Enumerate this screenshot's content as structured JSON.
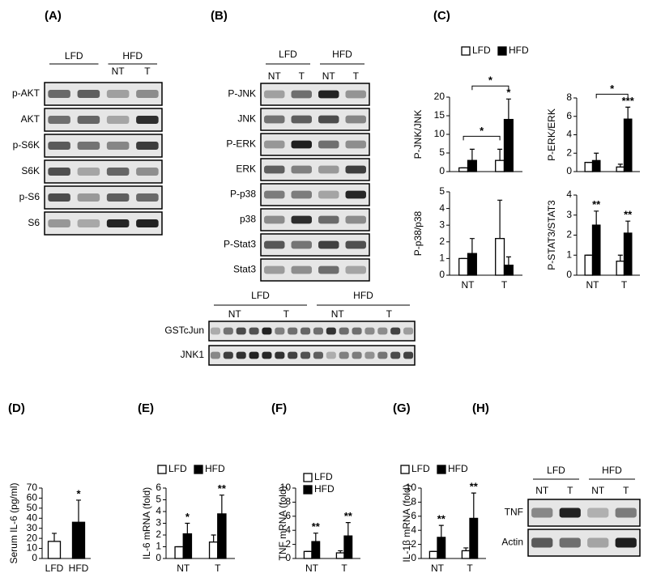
{
  "panel_labels": [
    "(A)",
    "(B)",
    "(C)",
    "(D)",
    "(E)",
    "(F)",
    "(G)",
    "(H)"
  ],
  "blots": [
    {
      "groups": [
        {
          "name": "LFD",
          "lanes": []
        },
        {
          "name": "HFD",
          "lanes": [
            "NT",
            "T"
          ]
        }
      ],
      "rows": [
        "p-AKT",
        "AKT",
        "p-S6K",
        "S6K",
        "p-S6",
        "S6"
      ]
    },
    {
      "groups": [
        {
          "name": "LFD",
          "lanes": [
            "NT",
            "T"
          ]
        },
        {
          "name": "HFD",
          "lanes": [
            "NT",
            "T"
          ]
        }
      ],
      "rows": [
        "P-JNK",
        "JNK",
        "P-ERK",
        "ERK",
        "P-p38",
        "p38",
        "P-Stat3",
        "Stat3"
      ]
    },
    {
      "groups": [
        {
          "name": "LFD",
          "lanes": [
            "NT",
            "T"
          ]
        },
        {
          "name": "HFD",
          "lanes": [
            "NT",
            "T"
          ]
        }
      ],
      "rows": [
        "GSTcJun",
        "JNK1"
      ]
    },
    {
      "groups": [
        {
          "name": "LFD",
          "lanes": [
            "NT",
            "T"
          ]
        },
        {
          "name": "HFD",
          "lanes": [
            "NT",
            "T"
          ]
        }
      ],
      "rows": [
        "TNF",
        "Actin"
      ]
    }
  ],
  "chart_data": [
    {
      "type": "bar",
      "ylabel": "P-JNK/JNK",
      "ylim": [
        0,
        20
      ],
      "yticks": [
        0,
        5,
        10,
        15,
        20
      ],
      "legend": "row",
      "series": [
        {
          "name": "LFD",
          "color": "#ffffff",
          "values": [
            1,
            3
          ],
          "errors": [
            0,
            3
          ],
          "stars": [
            null,
            null
          ],
          "bracket": "*"
        },
        {
          "name": "HFD",
          "color": "#000000",
          "values": [
            3,
            14
          ],
          "errors": [
            3,
            5.5
          ],
          "stars": [
            null,
            "*"
          ],
          "bracket": "*"
        }
      ]
    },
    {
      "type": "bar",
      "ylabel": "P-ERK/ERK",
      "ylim": [
        0,
        8
      ],
      "yticks": [
        0,
        2,
        4,
        6,
        8
      ],
      "series": [
        {
          "color": "#ffffff",
          "values": [
            1,
            0.5
          ],
          "errors": [
            0,
            0.3
          ],
          "stars": [
            null,
            null
          ]
        },
        {
          "color": "#000000",
          "values": [
            1.2,
            5.7
          ],
          "errors": [
            0.8,
            1.3
          ],
          "stars": [
            null,
            "***"
          ],
          "bracket": "*"
        }
      ]
    },
    {
      "type": "bar",
      "ylabel": "P-p38/p38",
      "ylim": [
        0,
        5
      ],
      "yticks": [
        0,
        1,
        2,
        3,
        4,
        5
      ],
      "categories": [
        "NT",
        "T"
      ],
      "series": [
        {
          "color": "#ffffff",
          "values": [
            1,
            2.2
          ],
          "errors": [
            0,
            2.3
          ],
          "stars": [
            null,
            null
          ]
        },
        {
          "color": "#000000",
          "values": [
            1.3,
            0.6
          ],
          "errors": [
            0.9,
            0.5
          ],
          "stars": [
            null,
            null
          ]
        }
      ]
    },
    {
      "type": "bar",
      "ylabel": "P-STAT3/STAT3",
      "ylim": [
        0,
        4
      ],
      "yticks": [
        0,
        1,
        2,
        3,
        4
      ],
      "categories": [
        "NT",
        "T"
      ],
      "series": [
        {
          "color": "#ffffff",
          "values": [
            1,
            0.7
          ],
          "errors": [
            0,
            0.3
          ],
          "stars": [
            null,
            null
          ]
        },
        {
          "color": "#000000",
          "values": [
            2.5,
            2.1
          ],
          "errors": [
            0.7,
            0.6
          ],
          "stars": [
            "**",
            "**"
          ]
        }
      ]
    },
    {
      "type": "bar",
      "ylabel": "Serum IL-6 (pg/ml)",
      "ylim": [
        0,
        70
      ],
      "yticks": [
        0,
        10,
        20,
        30,
        40,
        50,
        60,
        70
      ],
      "categories": [
        "LFD",
        "HFD"
      ],
      "series": [
        {
          "colors": [
            "#ffffff",
            "#000000"
          ],
          "values": [
            17,
            36
          ],
          "errors": [
            8,
            22
          ],
          "stars": [
            null,
            "*"
          ]
        }
      ]
    },
    {
      "type": "bar",
      "ylabel": "IL-6 mRNA (fold)",
      "ylim": [
        0,
        6
      ],
      "yticks": [
        0,
        1,
        2,
        3,
        4,
        5,
        6
      ],
      "categories": [
        "NT",
        "T"
      ],
      "legend": "row",
      "series": [
        {
          "name": "LFD",
          "color": "#ffffff",
          "values": [
            1,
            1.4
          ],
          "errors": [
            0,
            0.6
          ],
          "stars": [
            null,
            null
          ]
        },
        {
          "name": "HFD",
          "color": "#000000",
          "values": [
            2.1,
            3.8
          ],
          "errors": [
            0.9,
            1.6
          ],
          "stars": [
            "*",
            "**"
          ]
        }
      ]
    },
    {
      "type": "bar",
      "ylabel": "TNF mRNA (fold)",
      "ylim": [
        0,
        10
      ],
      "yticks": [
        0,
        2,
        4,
        6,
        8,
        10
      ],
      "categories": [
        "NT",
        "T"
      ],
      "legend": "column",
      "series": [
        {
          "name": "LFD",
          "color": "#ffffff",
          "values": [
            1,
            0.8
          ],
          "errors": [
            0,
            0.3
          ],
          "stars": [
            null,
            null
          ]
        },
        {
          "name": "HFD",
          "color": "#000000",
          "values": [
            2.4,
            3.2
          ],
          "errors": [
            1.2,
            1.9
          ],
          "stars": [
            "**",
            "**"
          ]
        }
      ]
    },
    {
      "type": "bar",
      "ylabel": "IL-1β mRNA (fold)",
      "ylim": [
        0,
        10
      ],
      "yticks": [
        0,
        2,
        4,
        6,
        8,
        10
      ],
      "categories": [
        "NT",
        "T"
      ],
      "legend": "row",
      "series": [
        {
          "name": "LFD",
          "color": "#ffffff",
          "values": [
            1,
            1.1
          ],
          "errors": [
            0,
            0.4
          ],
          "stars": [
            null,
            null
          ]
        },
        {
          "name": "HFD",
          "color": "#000000",
          "values": [
            3,
            5.7
          ],
          "errors": [
            1.7,
            3.6
          ],
          "stars": [
            "**",
            "**"
          ]
        }
      ]
    }
  ]
}
